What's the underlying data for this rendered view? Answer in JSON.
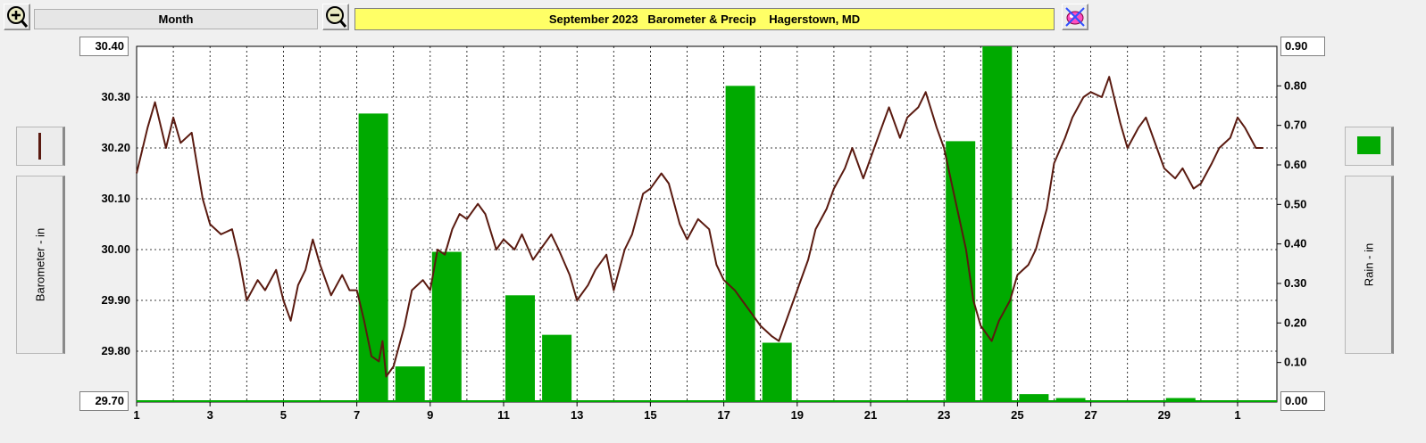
{
  "toolbar": {
    "zoom_in_icon": "magnifier-plus-icon",
    "zoom_out_icon": "magnifier-minus-icon",
    "period_label": "Month",
    "title": "September 2023   Barometer & Precip    Hagerstown, MD",
    "options_icon": "paint-palette-icon"
  },
  "left_axis": {
    "label": "Barometer - in",
    "max_label": "30.40",
    "min_label": "29.70",
    "series_color": "#5a1a10"
  },
  "right_axis": {
    "label": "Rain - in",
    "max_label": "0.90",
    "min_label": "0.00",
    "series_color": "#00aa00"
  },
  "chart_data": {
    "type": "bar+line",
    "x_tick_labels": [
      "1",
      "3",
      "5",
      "7",
      "9",
      "11",
      "13",
      "15",
      "17",
      "19",
      "21",
      "23",
      "25",
      "27",
      "29",
      "1"
    ],
    "barometer": {
      "unit": "in",
      "ylim": [
        29.7,
        30.4
      ],
      "yticks": [
        "30.30",
        "30.20",
        "30.10",
        "30.00",
        "29.90",
        "29.80"
      ],
      "day_points": [
        1,
        1.3,
        1.5,
        1.8,
        2,
        2.2,
        2.5,
        2.8,
        3,
        3.3,
        3.6,
        3.8,
        4,
        4.3,
        4.5,
        4.8,
        5,
        5.2,
        5.4,
        5.6,
        5.8,
        6,
        6.3,
        6.6,
        6.8,
        7,
        7.2,
        7.4,
        7.6,
        7.7,
        7.8,
        8,
        8.3,
        8.5,
        8.8,
        9,
        9.2,
        9.4,
        9.6,
        9.8,
        10,
        10.3,
        10.5,
        10.8,
        11,
        11.3,
        11.5,
        11.8,
        12,
        12.3,
        12.5,
        12.8,
        13,
        13.3,
        13.5,
        13.8,
        14,
        14.3,
        14.5,
        14.8,
        15,
        15.3,
        15.5,
        15.8,
        16,
        16.3,
        16.6,
        16.8,
        17,
        17.3,
        17.5,
        17.8,
        18,
        18.3,
        18.5,
        18.8,
        19,
        19.3,
        19.5,
        19.8,
        20,
        20.3,
        20.5,
        20.8,
        21,
        21.3,
        21.5,
        21.8,
        22,
        22.3,
        22.5,
        22.8,
        23,
        23.3,
        23.6,
        23.8,
        24,
        24.3,
        24.5,
        24.8,
        25,
        25.3,
        25.5,
        25.8,
        26,
        26.3,
        26.5,
        26.8,
        27,
        27.3,
        27.5,
        27.8,
        28,
        28.3,
        28.5,
        28.8,
        29,
        29.3,
        29.5,
        29.8,
        30,
        30.3,
        30.5,
        30.8,
        31,
        31.2,
        31.5,
        31.7
      ],
      "values": [
        30.15,
        30.24,
        30.29,
        30.2,
        30.26,
        30.21,
        30.23,
        30.1,
        30.05,
        30.03,
        30.04,
        29.98,
        29.9,
        29.94,
        29.92,
        29.96,
        29.9,
        29.86,
        29.93,
        29.96,
        30.02,
        29.97,
        29.91,
        29.95,
        29.92,
        29.92,
        29.86,
        29.79,
        29.78,
        29.82,
        29.75,
        29.77,
        29.85,
        29.92,
        29.94,
        29.92,
        30.0,
        29.99,
        30.04,
        30.07,
        30.06,
        30.09,
        30.07,
        30.0,
        30.02,
        30.0,
        30.03,
        29.98,
        30.0,
        30.03,
        30.0,
        29.95,
        29.9,
        29.93,
        29.96,
        29.99,
        29.92,
        30.0,
        30.03,
        30.11,
        30.12,
        30.15,
        30.13,
        30.05,
        30.02,
        30.06,
        30.04,
        29.97,
        29.94,
        29.92,
        29.9,
        29.87,
        29.85,
        29.83,
        29.82,
        29.88,
        29.92,
        29.98,
        30.04,
        30.08,
        30.12,
        30.16,
        30.2,
        30.14,
        30.18,
        30.24,
        30.28,
        30.22,
        30.26,
        30.28,
        30.31,
        30.24,
        30.2,
        30.1,
        30.0,
        29.9,
        29.85,
        29.82,
        29.86,
        29.9,
        29.95,
        29.97,
        30.0,
        30.08,
        30.17,
        30.22,
        30.26,
        30.3,
        30.31,
        30.3,
        30.34,
        30.25,
        30.2,
        30.24,
        30.26,
        30.2,
        30.16,
        30.14,
        30.16,
        30.12,
        30.13,
        30.17,
        30.2,
        30.22,
        30.26,
        30.24,
        30.2,
        30.2
      ]
    },
    "precip": {
      "unit": "in",
      "ylim": [
        0.0,
        0.9
      ],
      "yticks": [
        "0.80",
        "0.70",
        "0.60",
        "0.50",
        "0.40",
        "0.30",
        "0.20",
        "0.10"
      ],
      "days": [
        1,
        2,
        3,
        4,
        5,
        6,
        7,
        8,
        9,
        10,
        11,
        12,
        13,
        14,
        15,
        16,
        17,
        18,
        19,
        20,
        21,
        22,
        23,
        24,
        25,
        26,
        27,
        28,
        29,
        30
      ],
      "values": [
        0,
        0,
        0,
        0,
        0,
        0,
        0.73,
        0.09,
        0.38,
        0,
        0.27,
        0.17,
        0,
        0,
        0,
        0,
        0.8,
        0.15,
        0,
        0,
        0,
        0,
        0.66,
        0.9,
        0.02,
        0.01,
        0,
        0,
        0.01,
        0
      ]
    }
  }
}
